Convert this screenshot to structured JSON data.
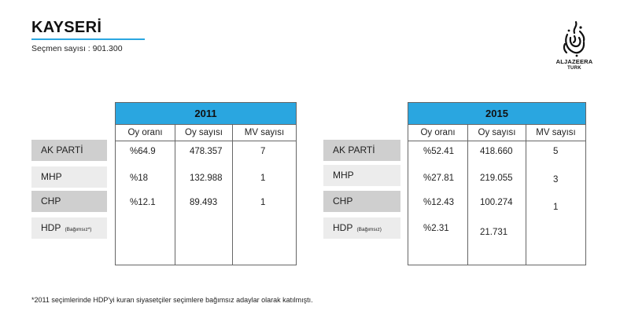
{
  "header": {
    "title": "KAYSERİ",
    "subtitle": "Seçmen sayısı : 901.300"
  },
  "logo": {
    "name": "ALJAZEERA",
    "sub": "TURK",
    "icon": "aljazeera-calligraphy-logo"
  },
  "parties": {
    "left": [
      {
        "name": "AK PARTİ",
        "note": ""
      },
      {
        "name": "MHP",
        "note": ""
      },
      {
        "name": "CHP",
        "note": ""
      },
      {
        "name": "HDP",
        "note": "(Bağımsız*)"
      }
    ],
    "right": [
      {
        "name": "AK PARTİ",
        "note": ""
      },
      {
        "name": "MHP",
        "note": ""
      },
      {
        "name": "CHP",
        "note": ""
      },
      {
        "name": "HDP",
        "note": "(Bağımsız)"
      }
    ]
  },
  "tables": {
    "t2011": {
      "year": "2011",
      "columns": [
        "Oy oranı",
        "Oy sayısı",
        "MV sayısı"
      ],
      "rows": [
        [
          "%64.9",
          "478.357",
          "7"
        ],
        [
          "%18",
          "132.988",
          "1"
        ],
        [
          "%12.1",
          "89.493",
          "1"
        ],
        [
          "",
          "",
          ""
        ]
      ]
    },
    "t2015": {
      "year": "2015",
      "columns": [
        "Oy oranı",
        "Oy sayısı",
        "MV sayısı"
      ],
      "rows": [
        [
          "%52.41",
          "418.660",
          "5"
        ],
        [
          "%27.81",
          "219.055",
          "3"
        ],
        [
          "%12.43",
          "100.274",
          "1"
        ],
        [
          "%2.31",
          "21.731",
          ""
        ]
      ]
    }
  },
  "footnote": "*2011 seçimlerinde HDP'yi kuran siyasetçiler seçimlere bağımsız adaylar olarak katılmıştı.",
  "colors": {
    "header_blue": "#2aa6e0",
    "label_dark": "#cfcfcf",
    "label_light": "#ececec"
  }
}
